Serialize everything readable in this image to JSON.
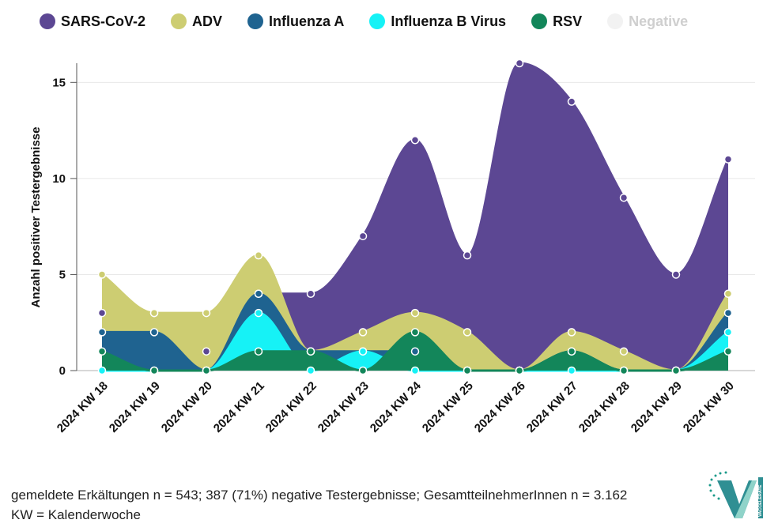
{
  "legend": [
    {
      "name": "SARS-CoV-2",
      "color": "#5c4793",
      "active": true
    },
    {
      "name": "ADV",
      "color": "#cdcd72",
      "active": true
    },
    {
      "name": "Influenza A",
      "color": "#1f6390",
      "active": true
    },
    {
      "name": "Influenza B Virus",
      "color": "#16f2f6",
      "active": true
    },
    {
      "name": "RSV",
      "color": "#13865a",
      "active": true
    },
    {
      "name": "Negative",
      "color": "#f2f2f2",
      "active": false
    }
  ],
  "chart_data": {
    "type": "area",
    "ylabel": "Anzahl positiver Testergebnisse",
    "xlabel": "",
    "categories": [
      "2024 KW 18",
      "2024 KW 19",
      "2024 KW 20",
      "2024 KW 21",
      "2024 KW 22",
      "2024 KW 23",
      "2024 KW 24",
      "2024 KW 25",
      "2024 KW 26",
      "2024 KW 27",
      "2024 KW 28",
      "2024 KW 29",
      "2024 KW 30"
    ],
    "ylim": [
      0,
      16
    ],
    "yticks": [
      0,
      5,
      10,
      15
    ],
    "grid": true,
    "legend_position": "top",
    "series": [
      {
        "name": "SARS-CoV-2",
        "color": "#5c4793",
        "values": [
          3,
          3,
          1,
          4,
          4,
          7,
          12,
          6,
          16,
          14,
          9,
          5,
          11
        ]
      },
      {
        "name": "ADV",
        "color": "#cdcd72",
        "values": [
          5,
          3,
          3,
          6,
          1,
          2,
          3,
          2,
          0,
          2,
          1,
          0,
          4
        ]
      },
      {
        "name": "Influenza A",
        "color": "#1f6390",
        "values": [
          2,
          2,
          0,
          4,
          1,
          1,
          1,
          0,
          0,
          1,
          0,
          0,
          3
        ]
      },
      {
        "name": "Influenza B Virus",
        "color": "#16f2f6",
        "values": [
          0,
          0,
          0,
          3,
          0,
          1,
          0,
          0,
          0,
          0,
          0,
          0,
          2
        ]
      },
      {
        "name": "RSV",
        "color": "#13865a",
        "values": [
          1,
          0,
          0,
          1,
          1,
          0,
          2,
          0,
          0,
          1,
          0,
          0,
          1
        ]
      }
    ]
  },
  "footer": {
    "line1": "gemeldete Erkältungen n = 543; 387 (71%) negative Testergebnisse; GesamtteilnehmerInnen n = 3.162",
    "line2": "KW = Kalenderwoche"
  },
  "logo": {
    "label": "VACCELERATE"
  }
}
